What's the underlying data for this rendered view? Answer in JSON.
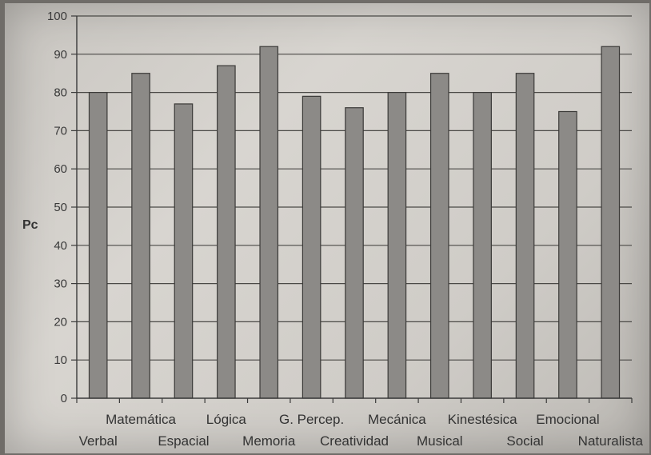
{
  "chart_data": {
    "type": "bar",
    "categories": [
      "Verbal",
      "Matemática",
      "Espacial",
      "Lógica",
      "Memoria",
      "G. Percep.",
      "Creatividad",
      "Mecánica",
      "Musical",
      "Kinestésica",
      "Social",
      "Emocional",
      "Naturalista"
    ],
    "values": [
      80,
      85,
      77,
      87,
      92,
      79,
      76,
      80,
      85,
      80,
      85,
      75,
      92
    ],
    "ylabel": "Pc",
    "xlabel": "",
    "title": "",
    "ylim": [
      0,
      100
    ],
    "yticks": [
      0,
      10,
      20,
      30,
      40,
      50,
      60,
      70,
      80,
      90,
      100
    ],
    "grid": true,
    "colors": {
      "bar_fill": "#8c8a87",
      "bar_edge": "#3b3a38",
      "grid": "#4a4946",
      "axis": "#3a3a3a"
    }
  }
}
